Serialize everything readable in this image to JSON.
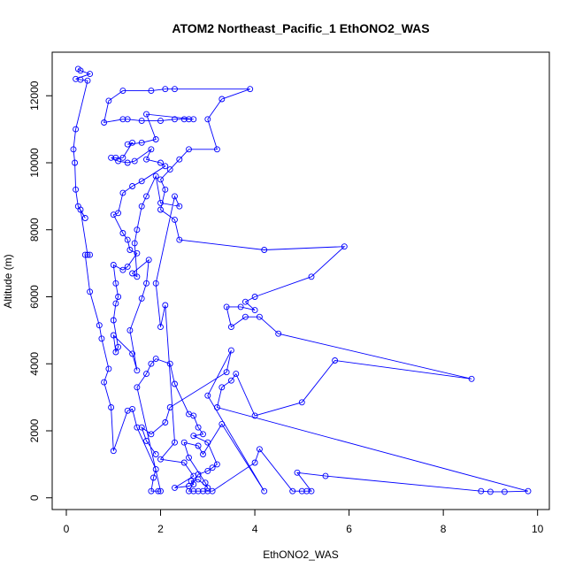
{
  "chart_data": {
    "type": "scatter",
    "title": "ATOM2 Northeast_Pacific_1 EthONO2_WAS",
    "xlabel": "EthONO2_WAS",
    "ylabel": "Altitude (m)",
    "xlim": [
      -0.3,
      10.25
    ],
    "ylim": [
      -350,
      13300
    ],
    "xticks": [
      0,
      2,
      4,
      6,
      8,
      10
    ],
    "xtick_labels": [
      "0",
      "2",
      "4",
      "6",
      "8",
      "10"
    ],
    "yticks": [
      0,
      2000,
      4000,
      6000,
      8000,
      10000,
      12000
    ],
    "ytick_labels": [
      "0",
      "2000",
      "4000",
      "6000",
      "8000",
      "10000",
      "12000"
    ],
    "grid": false,
    "connected": true,
    "series_color": "#0000ff",
    "points": [
      [
        0.25,
        12800
      ],
      [
        0.3,
        12750
      ],
      [
        0.5,
        12650
      ],
      [
        0.2,
        12500
      ],
      [
        0.3,
        12480
      ],
      [
        0.45,
        12450
      ],
      [
        0.2,
        11000
      ],
      [
        0.15,
        10400
      ],
      [
        0.18,
        10000
      ],
      [
        0.2,
        9200
      ],
      [
        0.25,
        8700
      ],
      [
        0.4,
        8350
      ],
      [
        0.3,
        8600
      ],
      [
        0.45,
        7250
      ],
      [
        0.5,
        7250
      ],
      [
        0.4,
        7250
      ],
      [
        0.5,
        6150
      ],
      [
        0.7,
        5150
      ],
      [
        0.75,
        4750
      ],
      [
        0.9,
        3850
      ],
      [
        0.8,
        3450
      ],
      [
        0.95,
        2700
      ],
      [
        1.0,
        1400
      ],
      [
        1.3,
        2600
      ],
      [
        1.4,
        2650
      ],
      [
        1.5,
        2100
      ],
      [
        1.9,
        850
      ],
      [
        1.85,
        600
      ],
      [
        1.8,
        200
      ],
      [
        1.95,
        200
      ],
      [
        2.0,
        200
      ],
      [
        1.5,
        3300
      ],
      [
        1.7,
        3700
      ],
      [
        1.8,
        4000
      ],
      [
        1.9,
        4150
      ],
      [
        2.2,
        4000
      ],
      [
        2.3,
        3400
      ],
      [
        2.6,
        2500
      ],
      [
        2.7,
        2450
      ],
      [
        2.8,
        2100
      ],
      [
        2.9,
        1900
      ],
      [
        2.7,
        1850
      ],
      [
        3.0,
        1650
      ],
      [
        3.2,
        1000
      ],
      [
        3.1,
        900
      ],
      [
        3.0,
        800
      ],
      [
        2.8,
        700
      ],
      [
        2.6,
        200
      ],
      [
        2.7,
        200
      ],
      [
        2.8,
        200
      ],
      [
        2.9,
        200
      ],
      [
        3.0,
        200
      ],
      [
        3.1,
        200
      ],
      [
        4.0,
        1050
      ],
      [
        4.1,
        1450
      ],
      [
        4.8,
        200
      ],
      [
        5.0,
        200
      ],
      [
        5.1,
        200
      ],
      [
        5.2,
        200
      ],
      [
        4.9,
        750
      ],
      [
        5.5,
        650
      ],
      [
        8.8,
        200
      ],
      [
        9.0,
        180
      ],
      [
        9.3,
        180
      ],
      [
        9.8,
        200
      ],
      [
        3.2,
        2700
      ],
      [
        3.3,
        3300
      ],
      [
        3.5,
        3500
      ],
      [
        3.6,
        3700
      ],
      [
        4.0,
        2450
      ],
      [
        5.0,
        2850
      ],
      [
        5.7,
        4100
      ],
      [
        8.6,
        3550
      ],
      [
        4.5,
        4900
      ],
      [
        4.1,
        5400
      ],
      [
        3.8,
        5400
      ],
      [
        3.5,
        5100
      ],
      [
        3.4,
        5700
      ],
      [
        3.7,
        5700
      ],
      [
        4.0,
        5600
      ],
      [
        3.8,
        5850
      ],
      [
        4.0,
        6000
      ],
      [
        5.2,
        6600
      ],
      [
        5.9,
        7500
      ],
      [
        4.2,
        7400
      ],
      [
        2.4,
        7700
      ],
      [
        2.3,
        8300
      ],
      [
        2.0,
        8600
      ],
      [
        2.1,
        9200
      ],
      [
        2.0,
        9500
      ],
      [
        2.2,
        9800
      ],
      [
        2.4,
        10100
      ],
      [
        2.6,
        10400
      ],
      [
        3.2,
        10400
      ],
      [
        3.0,
        11300
      ],
      [
        3.3,
        11900
      ],
      [
        3.9,
        12200
      ],
      [
        2.3,
        12200
      ],
      [
        2.1,
        12200
      ],
      [
        1.8,
        12150
      ],
      [
        1.2,
        12150
      ],
      [
        0.9,
        11850
      ],
      [
        0.8,
        11200
      ],
      [
        1.2,
        11300
      ],
      [
        1.3,
        11300
      ],
      [
        1.6,
        11250
      ],
      [
        2.0,
        11250
      ],
      [
        2.3,
        11300
      ],
      [
        2.5,
        11300
      ],
      [
        2.6,
        11300
      ],
      [
        2.7,
        11300
      ],
      [
        1.7,
        11450
      ],
      [
        1.9,
        10700
      ],
      [
        1.6,
        10600
      ],
      [
        1.3,
        10550
      ],
      [
        1.4,
        10600
      ],
      [
        1.2,
        10150
      ],
      [
        1.05,
        10150
      ],
      [
        0.95,
        10150
      ],
      [
        1.1,
        10050
      ],
      [
        1.3,
        10000
      ],
      [
        1.45,
        10050
      ],
      [
        1.8,
        10400
      ],
      [
        1.7,
        10100
      ],
      [
        2.0,
        10000
      ],
      [
        2.1,
        9900
      ],
      [
        1.6,
        9450
      ],
      [
        1.4,
        9300
      ],
      [
        1.2,
        9100
      ],
      [
        1.1,
        8500
      ],
      [
        1.0,
        8450
      ],
      [
        1.2,
        7900
      ],
      [
        1.3,
        7700
      ],
      [
        1.35,
        7400
      ],
      [
        1.5,
        7300
      ],
      [
        1.3,
        6900
      ],
      [
        1.2,
        6800
      ],
      [
        1.0,
        6950
      ],
      [
        1.05,
        6400
      ],
      [
        1.1,
        6000
      ],
      [
        1.05,
        5800
      ],
      [
        1.0,
        5300
      ],
      [
        1.1,
        4500
      ],
      [
        1.05,
        4350
      ],
      [
        1.0,
        4850
      ],
      [
        1.4,
        4300
      ],
      [
        1.5,
        3800
      ],
      [
        1.35,
        5000
      ],
      [
        1.6,
        5950
      ],
      [
        1.7,
        6400
      ],
      [
        1.75,
        7100
      ],
      [
        1.4,
        6700
      ],
      [
        1.5,
        6600
      ],
      [
        1.45,
        7600
      ],
      [
        1.5,
        8000
      ],
      [
        1.6,
        8700
      ],
      [
        1.7,
        9000
      ],
      [
        1.9,
        9600
      ],
      [
        2.0,
        8800
      ],
      [
        2.4,
        8700
      ],
      [
        2.3,
        9000
      ],
      [
        1.9,
        6400
      ],
      [
        2.0,
        5100
      ],
      [
        2.1,
        5750
      ],
      [
        2.3,
        1650
      ],
      [
        2.0,
        1150
      ],
      [
        2.5,
        1050
      ],
      [
        2.7,
        650
      ],
      [
        2.3,
        300
      ],
      [
        2.6,
        350
      ],
      [
        2.7,
        400
      ],
      [
        2.65,
        500
      ],
      [
        2.8,
        550
      ],
      [
        3.0,
        300
      ],
      [
        2.95,
        450
      ],
      [
        2.6,
        1200
      ],
      [
        2.5,
        1650
      ],
      [
        2.8,
        1550
      ],
      [
        2.9,
        1300
      ],
      [
        3.3,
        2200
      ],
      [
        4.2,
        200
      ],
      [
        3.0,
        3050
      ],
      [
        3.5,
        4400
      ],
      [
        3.4,
        3750
      ],
      [
        2.2,
        2700
      ],
      [
        2.1,
        2250
      ],
      [
        1.8,
        1900
      ],
      [
        1.6,
        2100
      ],
      [
        1.7,
        1700
      ],
      [
        1.9,
        1300
      ]
    ]
  }
}
